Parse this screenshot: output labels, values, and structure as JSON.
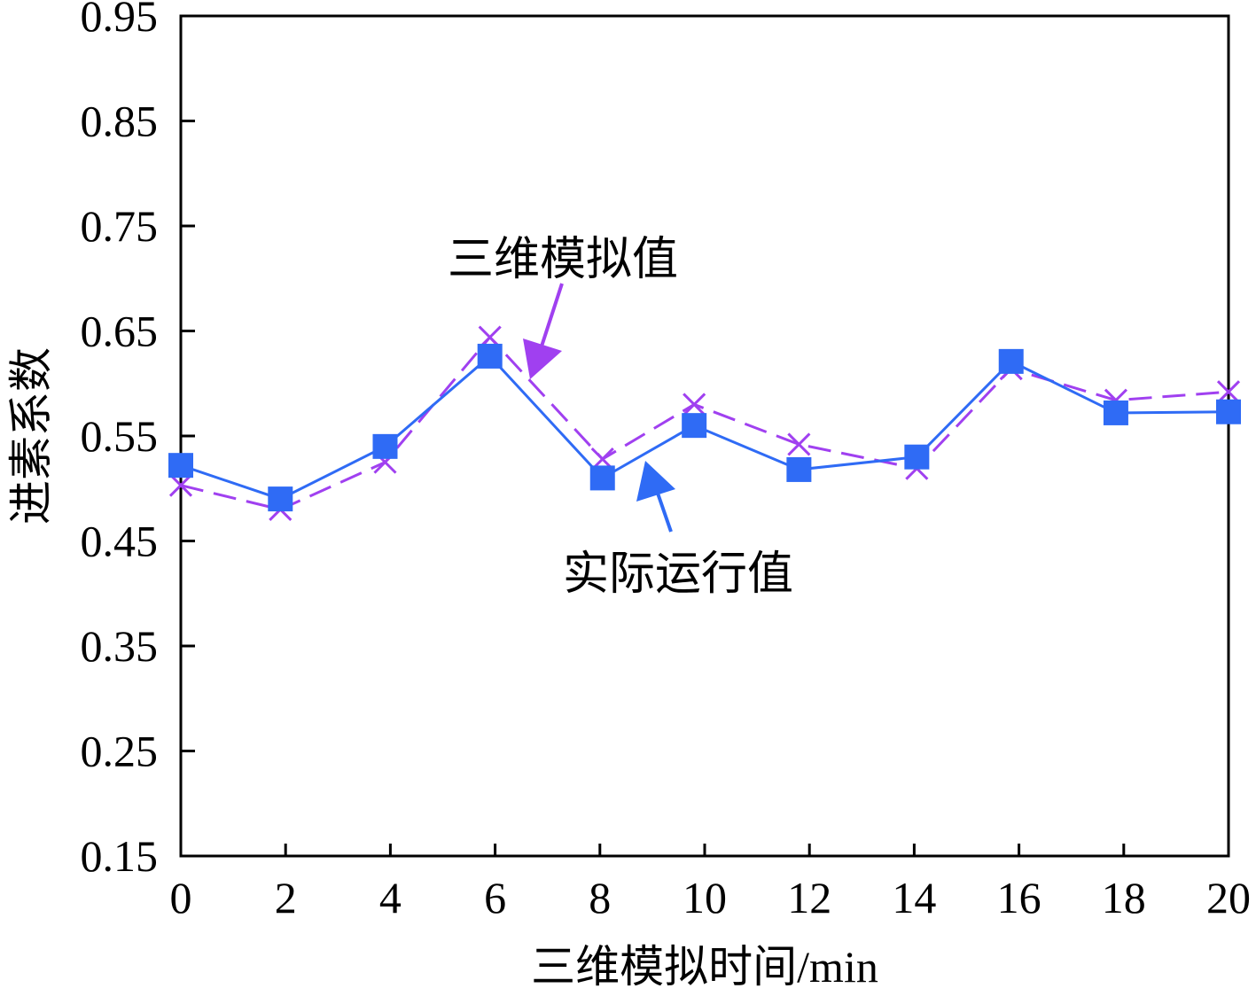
{
  "chart_data": {
    "type": "line",
    "title": "",
    "xlabel": "三维模拟时间/min",
    "ylabel": "进素系数",
    "xlim": [
      0,
      20
    ],
    "ylim": [
      0.15,
      0.95
    ],
    "xticks": [
      "0",
      "2",
      "4",
      "6",
      "8",
      "10",
      "12",
      "14",
      "16",
      "18",
      "20"
    ],
    "yticks": [
      "0.15",
      "0.25",
      "0.35",
      "0.45",
      "0.55",
      "0.65",
      "0.75",
      "0.85",
      "0.95"
    ],
    "grid": false,
    "series": [
      {
        "name": "实际运行值",
        "color": "#2f6bf5",
        "marker": "square",
        "style": "solid",
        "x": [
          0,
          1.9,
          3.9,
          5.9,
          8.05,
          9.8,
          11.8,
          14.05,
          15.85,
          17.85,
          20
        ],
        "y": [
          0.522,
          0.49,
          0.54,
          0.626,
          0.51,
          0.56,
          0.518,
          0.53,
          0.621,
          0.572,
          0.573
        ]
      },
      {
        "name": "三维模拟值",
        "color": "#a040f0",
        "marker": "x",
        "style": "dashed",
        "x": [
          0,
          1.9,
          3.9,
          5.9,
          8.05,
          9.8,
          11.8,
          14.05,
          15.85,
          17.85,
          20
        ],
        "y": [
          0.503,
          0.48,
          0.525,
          0.644,
          0.528,
          0.58,
          0.542,
          0.519,
          0.614,
          0.584,
          0.592
        ]
      }
    ],
    "annotations": [
      {
        "text": "三维模拟值",
        "series": "三维模拟值"
      },
      {
        "text": "实际运行值",
        "series": "实际运行值"
      }
    ]
  }
}
